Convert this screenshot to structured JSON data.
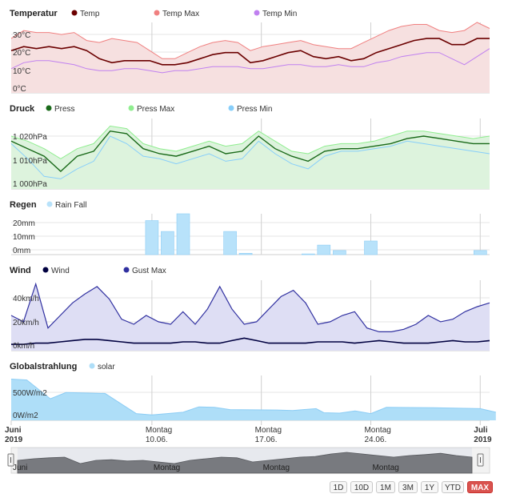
{
  "chart_data": [
    {
      "type": "area",
      "title": "Temperatur",
      "yticks": [
        "30°C",
        "20°C",
        "10°C",
        "0°C"
      ],
      "ylim": [
        0,
        35
      ],
      "legend": [
        "Temp",
        "Temp Max",
        "Temp Min"
      ],
      "colors": {
        "Temp": "#6b0000",
        "Temp Max": "#f08080",
        "Temp Min": "#c080f0",
        "fill": "#f6e0e0"
      },
      "series": [
        {
          "name": "Temp",
          "values": [
            21,
            23,
            22,
            23,
            22,
            23,
            21,
            17,
            15,
            16,
            16,
            16,
            14,
            14,
            15,
            17,
            19,
            20,
            20,
            15,
            16,
            18,
            20,
            21,
            18,
            17,
            18,
            16,
            17,
            20,
            22,
            24,
            26,
            27,
            27,
            24,
            24,
            27,
            27
          ]
        },
        {
          "name": "Temp Max",
          "values": [
            27,
            31,
            30,
            30,
            29,
            30,
            26,
            25,
            27,
            26,
            25,
            21,
            17,
            17,
            20,
            23,
            25,
            26,
            25,
            21,
            23,
            24,
            25,
            26,
            24,
            23,
            22,
            22,
            25,
            28,
            31,
            33,
            34,
            34,
            31,
            30,
            31,
            35,
            32
          ]
        },
        {
          "name": "Temp Min",
          "values": [
            12,
            15,
            16,
            16,
            15,
            14,
            12,
            11,
            11,
            12,
            12,
            11,
            10,
            11,
            11,
            12,
            13,
            13,
            13,
            12,
            12,
            13,
            14,
            14,
            13,
            13,
            14,
            13,
            13,
            15,
            16,
            18,
            19,
            20,
            20,
            17,
            14,
            18,
            22
          ]
        }
      ]
    },
    {
      "type": "area",
      "title": "Druck",
      "yticks": [
        "1 020hPa",
        "1 010hPa",
        "1 000hPa"
      ],
      "ylim": [
        998,
        1026
      ],
      "legend": [
        "Press",
        "Press Max",
        "Press Min"
      ],
      "colors": {
        "Press": "#1a6a1a",
        "Press Max": "#90ee90",
        "Press Min": "#87cefa",
        "fill": "#ddf3dd"
      },
      "series": [
        {
          "name": "Press",
          "values": [
            1017,
            1014,
            1011,
            1005,
            1011,
            1013,
            1021,
            1020,
            1014,
            1012,
            1011,
            1013,
            1015,
            1012,
            1013,
            1019,
            1014,
            1011,
            1009,
            1013,
            1014,
            1014,
            1015,
            1016,
            1018,
            1019,
            1018,
            1017,
            1016,
            1016
          ]
        },
        {
          "name": "Press Max",
          "values": [
            1019,
            1017,
            1014,
            1010,
            1014,
            1016,
            1023,
            1022,
            1016,
            1014,
            1013,
            1015,
            1017,
            1015,
            1016,
            1021,
            1017,
            1013,
            1012,
            1015,
            1016,
            1016,
            1017,
            1019,
            1021,
            1021,
            1020,
            1019,
            1018,
            1019
          ]
        },
        {
          "name": "Press Min",
          "values": [
            1016,
            1010,
            1003,
            1002,
            1006,
            1009,
            1019,
            1016,
            1011,
            1010,
            1008,
            1010,
            1012,
            1009,
            1010,
            1017,
            1012,
            1008,
            1006,
            1011,
            1013,
            1013,
            1014,
            1015,
            1017,
            1016,
            1015,
            1014,
            1013,
            1012
          ]
        }
      ]
    },
    {
      "type": "bar",
      "title": "Regen",
      "yticks": [
        "20mm",
        "10mm",
        "0mm"
      ],
      "ylim": [
        0,
        30
      ],
      "legend": [
        "Rain Fall"
      ],
      "colors": {
        "Rain Fall": "#b8e2fa",
        "border": "#8ccdf5"
      },
      "series": [
        {
          "name": "Rain Fall",
          "days": [
            10,
            11,
            12,
            15,
            16,
            20,
            21,
            22,
            24,
            31
          ],
          "values": [
            25,
            17,
            30,
            17,
            1,
            0.5,
            7,
            3,
            10,
            3
          ]
        }
      ]
    },
    {
      "type": "area",
      "title": "Wind",
      "yticks": [
        "40km/h",
        "20km/h",
        "0km/h"
      ],
      "ylim": [
        -3,
        53
      ],
      "legend": [
        "Wind",
        "Gust Max"
      ],
      "colors": {
        "Wind": "#000040",
        "Gust Max": "#3030a0",
        "fill": "#dedef4"
      },
      "series": [
        {
          "name": "Wind",
          "values": [
            2,
            2,
            3,
            3,
            4,
            5,
            6,
            6,
            5,
            4,
            3,
            3,
            3,
            3,
            4,
            4,
            3,
            3,
            5,
            7,
            5,
            3,
            3,
            3,
            3,
            4,
            4,
            4,
            3,
            4,
            5,
            4,
            3,
            3,
            3,
            4,
            5,
            4,
            4,
            5
          ]
        },
        {
          "name": "Gust Max",
          "values": [
            25,
            20,
            50,
            15,
            25,
            35,
            42,
            48,
            38,
            22,
            18,
            25,
            20,
            18,
            28,
            18,
            30,
            48,
            30,
            18,
            20,
            30,
            40,
            45,
            35,
            18,
            20,
            25,
            28,
            15,
            12,
            12,
            14,
            18,
            25,
            20,
            22,
            28,
            32,
            35
          ]
        }
      ]
    },
    {
      "type": "area",
      "title": "Globalstrahlung",
      "yticks": [
        "500W/m2",
        "0W/m2"
      ],
      "ylim": [
        0,
        1000
      ],
      "legend": [
        "solar"
      ],
      "colors": {
        "solar": "#aedef8",
        "line": "#8ccdf5"
      },
      "series": [
        {
          "name": "solar",
          "x": [
            0,
            1,
            2.5,
            3.5,
            6,
            8,
            9,
            11,
            12,
            13,
            14,
            17,
            18,
            19.5,
            20,
            21,
            22,
            23,
            24,
            27,
            30,
            31
          ],
          "values": [
            920,
            900,
            480,
            620,
            600,
            150,
            120,
            180,
            300,
            290,
            240,
            230,
            220,
            260,
            170,
            160,
            210,
            150,
            290,
            280,
            260,
            180
          ]
        }
      ]
    }
  ],
  "legend": {
    "temperatur": {
      "title": "Temperatur",
      "items": [
        "Temp",
        "Temp Max",
        "Temp Min"
      ]
    },
    "druck": {
      "title": "Druck",
      "items": [
        "Press",
        "Press Max",
        "Press Min"
      ]
    },
    "regen": {
      "title": "Regen",
      "items": [
        "Rain Fall"
      ]
    },
    "wind": {
      "title": "Wind",
      "items": [
        "Wind",
        "Gust Max"
      ]
    },
    "global": {
      "title": "Globalstrahlung",
      "items": [
        "solar"
      ]
    }
  },
  "x_axis": {
    "labels": [
      {
        "line1": "Juni",
        "line2": "2019",
        "day": 1,
        "bold": true
      },
      {
        "line1": "Montag",
        "line2": "10.06.",
        "day": 10,
        "bold": false
      },
      {
        "line1": "Montag",
        "line2": "17.06.",
        "day": 17,
        "bold": false
      },
      {
        "line1": "Montag",
        "line2": "24.06.",
        "day": 24,
        "bold": false
      },
      {
        "line1": "Juli",
        "line2": "2019",
        "day": 31,
        "bold": true
      }
    ]
  },
  "navigator": {
    "labels": [
      "Juni",
      "Montag",
      "Montag",
      "Montag"
    ],
    "values": [
      40,
      45,
      48,
      50,
      30,
      40,
      42,
      38,
      40,
      35,
      30,
      40,
      45,
      50,
      48,
      35,
      40,
      45,
      50,
      52,
      60,
      65,
      60,
      55,
      50,
      55,
      58,
      62,
      55,
      50
    ]
  },
  "range_selector": {
    "buttons": [
      "1D",
      "10D",
      "1M",
      "3M",
      "1Y",
      "YTD",
      "MAX"
    ],
    "active": "MAX"
  }
}
